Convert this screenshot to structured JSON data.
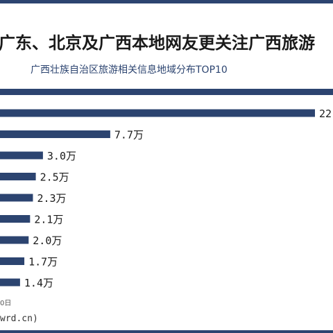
{
  "header": {
    "title": "广东、北京及广西本地网友更关注广西旅游",
    "subtitle": "广西壮族自治区旅游相关信息地域分布TOP10"
  },
  "footer": {
    "source_fragment": "0日",
    "site_fragment": "wrd.cn)"
  },
  "colors": {
    "bar": "#2c4470",
    "band": "#2c4470",
    "label": "#1a1a1a"
  },
  "chart_data": {
    "type": "bar",
    "orientation": "horizontal",
    "title": "广东、北京及广西本地网友更关注广西旅游",
    "subtitle": "广西壮族自治区旅游相关信息地域分布TOP10",
    "values": [
      22,
      7.7,
      3.0,
      2.5,
      2.3,
      2.1,
      2.0,
      1.7,
      1.4
    ],
    "value_labels": [
      "22",
      "7.7万",
      "3.0万",
      "2.5万",
      "2.3万",
      "2.1万",
      "2.0万",
      "1.7万",
      "1.4万"
    ],
    "unit": "万",
    "categories_visible": false,
    "grid": false
  }
}
